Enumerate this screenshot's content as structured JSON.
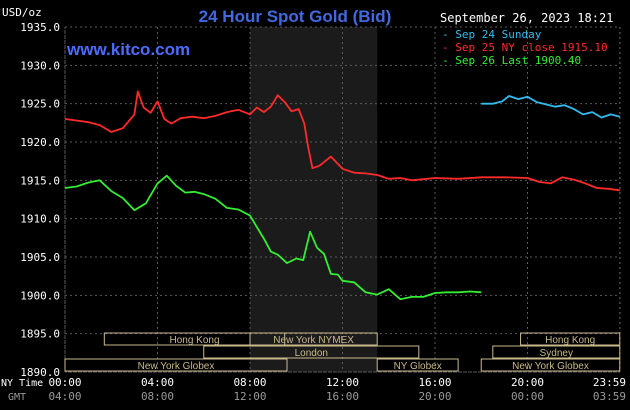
{
  "chart_data": {
    "type": "line",
    "title": "24 Hour Spot Gold (Bid)",
    "watermark": "www.kitco.com",
    "timestamp": "September 26, 2023 18:21",
    "y_unit_label": "USD/oz",
    "ylim": [
      1890.0,
      1935.0
    ],
    "y_ticks": [
      "1935.0",
      "1930.0",
      "1925.0",
      "1920.0",
      "1915.0",
      "1910.0",
      "1905.0",
      "1900.0",
      "1895.0",
      "1890.0"
    ],
    "xlim_hours": [
      0,
      24
    ],
    "x_axis_label_ny": "NY Time",
    "x_axis_label_gmt": "GMT",
    "x_ticks_ny": [
      "00:00",
      "04:00",
      "08:00",
      "12:00",
      "16:00",
      "20:00",
      "23:59"
    ],
    "x_ticks_gmt": [
      "04:00",
      "08:00",
      "12:00",
      "16:00",
      "20:00",
      "00:00",
      "03:59"
    ],
    "grid": true,
    "legend_position": "top-right",
    "shaded_session_hours": [
      8.0,
      13.5
    ],
    "colors": {
      "background": "#000000",
      "grid": "#5a5a5a",
      "session_shade": "#1b1b1b",
      "title": "#4169e1",
      "watermark": "#4e6bff",
      "axis_text": "#ffffff",
      "session_box_fill": "#c9b98b",
      "session_box_text": "#000000"
    },
    "series": [
      {
        "name": "Sep 24 Sunday",
        "color": "#33bbee",
        "x": [
          18.0,
          18.5,
          18.9,
          19.2,
          19.6,
          20.0,
          20.4,
          20.8,
          21.2,
          21.6,
          22.0,
          22.4,
          22.8,
          23.2,
          23.6,
          23.99
        ],
        "y": [
          1925.0,
          1925.0,
          1925.3,
          1926.0,
          1925.6,
          1925.9,
          1925.2,
          1924.9,
          1924.6,
          1924.8,
          1924.3,
          1923.6,
          1923.9,
          1923.2,
          1923.6,
          1923.3
        ]
      },
      {
        "name": "Sep 25 NY close 1915.10",
        "color": "#ff2a2a",
        "x": [
          0.0,
          0.5,
          1.0,
          1.5,
          2.0,
          2.5,
          3.0,
          3.15,
          3.4,
          3.7,
          4.0,
          4.3,
          4.6,
          5.0,
          5.5,
          6.0,
          6.5,
          7.0,
          7.5,
          8.0,
          8.3,
          8.6,
          8.9,
          9.2,
          9.5,
          9.8,
          10.1,
          10.35,
          10.5,
          10.7,
          11.0,
          11.5,
          12.0,
          12.5,
          13.0,
          13.5,
          14.0,
          14.5,
          15.0,
          16.0,
          17.0,
          18.0,
          19.0,
          20.0,
          20.5,
          21.0,
          21.5,
          22.0,
          22.5,
          23.0,
          23.5,
          23.99
        ],
        "y": [
          1923.0,
          1922.8,
          1922.6,
          1922.2,
          1921.3,
          1921.8,
          1923.6,
          1926.6,
          1924.5,
          1923.8,
          1925.3,
          1923.0,
          1922.4,
          1923.1,
          1923.3,
          1923.1,
          1923.4,
          1923.9,
          1924.2,
          1923.6,
          1924.5,
          1923.9,
          1924.6,
          1926.1,
          1925.2,
          1924.0,
          1924.3,
          1922.4,
          1919.6,
          1916.6,
          1916.9,
          1918.1,
          1916.5,
          1916.0,
          1915.9,
          1915.7,
          1915.2,
          1915.3,
          1915.0,
          1915.3,
          1915.2,
          1915.4,
          1915.4,
          1915.3,
          1914.8,
          1914.6,
          1915.4,
          1915.1,
          1914.6,
          1914.0,
          1913.9,
          1913.7
        ]
      },
      {
        "name": "Sep 26 Last 1900.40",
        "color": "#33ee33",
        "x": [
          0.0,
          0.5,
          1.0,
          1.5,
          2.0,
          2.5,
          3.0,
          3.5,
          4.0,
          4.4,
          4.8,
          5.2,
          5.6,
          6.0,
          6.5,
          7.0,
          7.5,
          8.0,
          8.3,
          8.6,
          8.9,
          9.2,
          9.6,
          10.0,
          10.3,
          10.6,
          10.9,
          11.2,
          11.5,
          11.8,
          12.0,
          12.5,
          13.0,
          13.5,
          14.0,
          14.5,
          15.0,
          15.5,
          16.0,
          16.5,
          17.0,
          17.5,
          18.0
        ],
        "y": [
          1914.0,
          1914.2,
          1914.7,
          1915.0,
          1913.6,
          1912.7,
          1911.1,
          1912.0,
          1914.6,
          1915.6,
          1914.3,
          1913.4,
          1913.5,
          1913.2,
          1912.6,
          1911.4,
          1911.2,
          1910.4,
          1908.9,
          1907.4,
          1905.7,
          1905.3,
          1904.2,
          1904.8,
          1904.6,
          1908.3,
          1906.2,
          1905.4,
          1902.8,
          1902.7,
          1901.9,
          1901.7,
          1900.4,
          1900.1,
          1900.8,
          1899.5,
          1899.8,
          1899.8,
          1900.3,
          1900.4,
          1900.4,
          1900.5,
          1900.4
        ]
      }
    ],
    "sessions": [
      {
        "label": "Hong Kong",
        "start_hour": 1.7,
        "end_hour": 9.5
      },
      {
        "label": "London",
        "start_hour": 6.0,
        "end_hour": 15.3
      },
      {
        "label": "New York Globex",
        "start_hour": 0.0,
        "end_hour": 9.6
      },
      {
        "label": "New York NYMEX",
        "start_hour": 8.0,
        "end_hour": 13.5
      },
      {
        "label": "NY Globex",
        "start_hour": 13.5,
        "end_hour": 17.0
      },
      {
        "label": "Hong Kong",
        "start_hour": 19.7,
        "end_hour": 23.99
      },
      {
        "label": "Sydney",
        "start_hour": 18.5,
        "end_hour": 23.99
      },
      {
        "label": "New York Globex",
        "start_hour": 18.0,
        "end_hour": 23.99
      }
    ]
  }
}
